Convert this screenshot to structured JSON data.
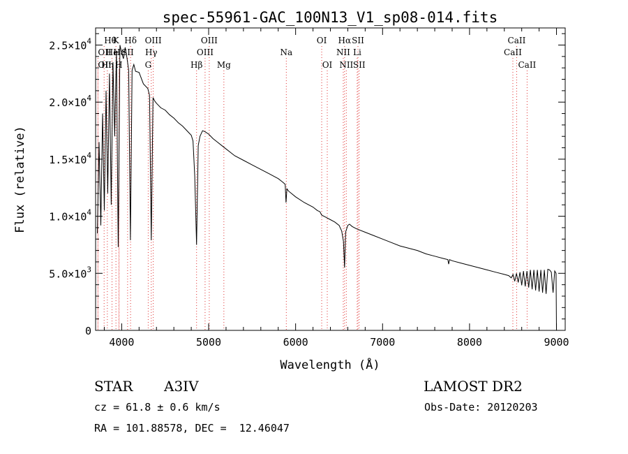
{
  "chart_data": {
    "type": "line",
    "title": "spec-55961-GAC_100N13_V1_sp08-014.fits",
    "xlabel": "Wavelength (Å)",
    "ylabel": "Flux (relative)",
    "xlim": [
      3700,
      9100
    ],
    "ylim": [
      0,
      26500
    ],
    "x_ticks": [
      4000,
      5000,
      6000,
      7000,
      8000,
      9000
    ],
    "x_tick_labels": [
      "4000",
      "5000",
      "6000",
      "7000",
      "8000",
      "9000"
    ],
    "y_ticks": [
      0,
      5000,
      10000,
      15000,
      20000,
      25000
    ],
    "y_tick_labels": [
      {
        "mant": "0",
        "exp": ""
      },
      {
        "mant": "5.0×10",
        "exp": "3"
      },
      {
        "mant": "1.0×10",
        "exp": "4"
      },
      {
        "mant": "1.5×10",
        "exp": "4"
      },
      {
        "mant": "2.0×10",
        "exp": "4"
      },
      {
        "mant": "2.5×10",
        "exp": "4"
      }
    ],
    "spectrum": {
      "name": "flux",
      "x": [
        3720,
        3740,
        3760,
        3780,
        3800,
        3820,
        3840,
        3860,
        3880,
        3900,
        3920,
        3940,
        3960,
        3980,
        4000,
        4020,
        4040,
        4060,
        4080,
        4100,
        4120,
        4140,
        4160,
        4200,
        4250,
        4300,
        4320,
        4340,
        4360,
        4380,
        4400,
        4450,
        4500,
        4550,
        4600,
        4650,
        4700,
        4750,
        4800,
        4820,
        4840,
        4861,
        4880,
        4900,
        4930,
        4960,
        5000,
        5050,
        5100,
        5150,
        5200,
        5250,
        5300,
        5400,
        5500,
        5600,
        5700,
        5800,
        5850,
        5880,
        5890,
        5900,
        5920,
        6000,
        6100,
        6200,
        6250,
        6280,
        6300,
        6350,
        6400,
        6450,
        6500,
        6530,
        6550,
        6563,
        6575,
        6600,
        6620,
        6650,
        6700,
        6800,
        6900,
        7000,
        7100,
        7200,
        7300,
        7400,
        7500,
        7600,
        7700,
        7750,
        7760,
        7770,
        7800,
        7900,
        8000,
        8100,
        8200,
        8300,
        8400,
        8450,
        8480,
        8500,
        8520,
        8540,
        8560,
        8580,
        8600,
        8620,
        8640,
        8660,
        8680,
        8700,
        8720,
        8740,
        8760,
        8780,
        8800,
        8820,
        8840,
        8860,
        8880,
        8900,
        8920,
        8940,
        8960,
        8980,
        8995,
        9000
      ],
      "y": [
        8500,
        16500,
        9200,
        19000,
        10500,
        21000,
        12000,
        22500,
        11000,
        23500,
        17000,
        24500,
        7300,
        25000,
        24300,
        23800,
        24800,
        23900,
        22800,
        7900,
        22800,
        23300,
        22700,
        22600,
        21600,
        21200,
        20600,
        7900,
        20400,
        20100,
        19900,
        19500,
        19300,
        18900,
        18600,
        18200,
        17900,
        17500,
        17100,
        16600,
        13500,
        7500,
        16200,
        17000,
        17500,
        17400,
        17200,
        16800,
        16500,
        16200,
        15900,
        15600,
        15300,
        14900,
        14500,
        14100,
        13700,
        13300,
        13000,
        12800,
        11200,
        12400,
        12200,
        11700,
        11200,
        10800,
        10500,
        10400,
        10100,
        9900,
        9700,
        9500,
        9200,
        8700,
        7800,
        5500,
        8600,
        9200,
        9300,
        9100,
        8900,
        8600,
        8300,
        8000,
        7700,
        7400,
        7200,
        7000,
        6700,
        6500,
        6300,
        6200,
        5800,
        6200,
        6100,
        5900,
        5700,
        5500,
        5300,
        5100,
        4900,
        4800,
        4600,
        4900,
        4300,
        5000,
        4200,
        5100,
        3950,
        5200,
        3850,
        5200,
        3750,
        5300,
        3600,
        5300,
        3500,
        5300,
        3400,
        5300,
        3300,
        5300,
        3200,
        5350,
        5300,
        5100,
        3300,
        5200,
        5000,
        0
      ]
    },
    "line_markers": [
      {
        "label": "Hθ",
        "x": 3798,
        "row": 1,
        "ha": "left"
      },
      {
        "label": "OII",
        "x": 3727,
        "row": 2,
        "ha": "left"
      },
      {
        "label": "OII",
        "x": 3727,
        "row": 3,
        "ha": "left"
      },
      {
        "label": "Hη",
        "x": 3835,
        "row": 3,
        "ha": "center"
      },
      {
        "label": "He",
        "x": 3889,
        "row": 2,
        "ha": "center"
      },
      {
        "label": "K",
        "x": 3934,
        "row": 1,
        "ha": "center"
      },
      {
        "label": "H",
        "x": 3968,
        "row": 3,
        "ha": "center"
      },
      {
        "label": "Hε",
        "x": 3970,
        "row": 2,
        "ha": "center"
      },
      {
        "label": "SII",
        "x": 4068,
        "row": 2,
        "ha": "center"
      },
      {
        "label": "Hδ",
        "x": 4102,
        "row": 1,
        "ha": "center"
      },
      {
        "label": "OIII",
        "x": 4363,
        "row": 1,
        "ha": "center"
      },
      {
        "label": "Hγ",
        "x": 4340,
        "row": 2,
        "ha": "center"
      },
      {
        "label": "G",
        "x": 4305,
        "row": 3,
        "ha": "center"
      },
      {
        "label": "Hβ",
        "x": 4861,
        "row": 3,
        "ha": "center"
      },
      {
        "label": "OIII",
        "x": 4959,
        "row": 2,
        "ha": "center"
      },
      {
        "label": "OIII",
        "x": 5007,
        "row": 1,
        "ha": "center"
      },
      {
        "label": "Mg",
        "x": 5175,
        "row": 3,
        "ha": "center"
      },
      {
        "label": "Na",
        "x": 5893,
        "row": 2,
        "ha": "center"
      },
      {
        "label": "OI",
        "x": 6300,
        "row": 1,
        "ha": "center"
      },
      {
        "label": "OI",
        "x": 6364,
        "row": 3,
        "ha": "center"
      },
      {
        "label": "NII",
        "x": 6548,
        "row": 2,
        "ha": "center"
      },
      {
        "label": "Hα",
        "x": 6563,
        "row": 1,
        "ha": "center"
      },
      {
        "label": "NII",
        "x": 6583,
        "row": 3,
        "ha": "center"
      },
      {
        "label": "SII",
        "x": 6717,
        "row": 1,
        "ha": "center"
      },
      {
        "label": "Li",
        "x": 6708,
        "row": 2,
        "ha": "center"
      },
      {
        "label": "SII",
        "x": 6731,
        "row": 3,
        "ha": "center"
      },
      {
        "label": "CaII",
        "x": 8498,
        "row": 2,
        "ha": "center"
      },
      {
        "label": "CaII",
        "x": 8542,
        "row": 1,
        "ha": "center"
      },
      {
        "label": "CaII",
        "x": 8662,
        "row": 3,
        "ha": "center"
      }
    ],
    "colors": {
      "spectrum": "#000000",
      "marker": "#e03030",
      "axis": "#000000"
    }
  },
  "info": {
    "object_class": "STAR",
    "subclass": "A3IV",
    "survey": "LAMOST DR2",
    "redshift_text": "cz = 61.8 ± 0.6 km/s",
    "obs_date": "Obs-Date: 20120203",
    "coords": "RA = 101.88578, DEC =  12.46047"
  }
}
